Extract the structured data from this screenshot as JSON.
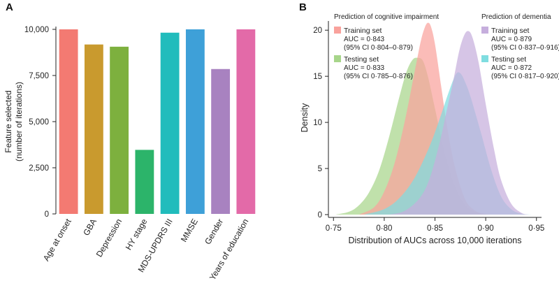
{
  "chart_data": [
    {
      "panel_label": "A",
      "type": "bar",
      "ylabel_line1": "Feature selected",
      "ylabel_line2": "(number of iterations)",
      "ylim": [
        0,
        10000
      ],
      "yticks": [
        0,
        2500,
        5000,
        7500,
        10000
      ],
      "ytick_labels": [
        "0",
        "2,500",
        "5,000",
        "7,500",
        "10,000"
      ],
      "categories": [
        "Age at onset",
        "GBA",
        "Depression",
        "HY stage",
        "MDS-UPDRS III",
        "MMSE",
        "Gender",
        "Years of education"
      ],
      "values": [
        10000,
        9180,
        9060,
        3470,
        9820,
        10000,
        7850,
        10000
      ],
      "colors": [
        "#f37a72",
        "#c99a2e",
        "#7db03e",
        "#2cb46a",
        "#21bcbc",
        "#3ea0d8",
        "#a882c0",
        "#e36aa8"
      ]
    },
    {
      "panel_label": "B",
      "type": "area",
      "xlabel": "Distribution of AUCs across 10,000 iterations",
      "ylabel": "Density",
      "xlim": [
        0.745,
        0.955
      ],
      "ylim": [
        0,
        21
      ],
      "xticks": [
        0.75,
        0.8,
        0.85,
        0.9,
        0.95
      ],
      "xtick_labels": [
        "0·75",
        "0·80",
        "0·85",
        "0·90",
        "0·95"
      ],
      "yticks": [
        0,
        5,
        10,
        15,
        20
      ],
      "ytick_labels": [
        "0",
        "5",
        "10",
        "15",
        "20"
      ],
      "groups": [
        {
          "heading": "Prediction of cognitive impairment",
          "entries": [
            {
              "name": "Training set",
              "line1": "AUC = 0·843",
              "line2": "(95% CI 0·804–0·879)",
              "color": "#f9a29c"
            },
            {
              "name": "Testing set",
              "line1": "AUC = 0·833",
              "line2": "(95% CI 0·785–0·876)",
              "color": "#a7d58a"
            }
          ]
        },
        {
          "heading": "Prediction of dementia",
          "entries": [
            {
              "name": "Training set",
              "line1": "AUC = 0·879",
              "line2": "(95% CI 0·837–0·916)",
              "color": "#c6aedd"
            },
            {
              "name": "Testing set",
              "line1": "AUC = 0·872",
              "line2": "(95% CI 0·817–0·920)",
              "color": "#7fdde0"
            }
          ]
        }
      ],
      "series": [
        {
          "name": "Testing set (cognitive impairment)",
          "color": "#a7d58a",
          "x": [
            0.752,
            0.765,
            0.775,
            0.785,
            0.795,
            0.805,
            0.815,
            0.822,
            0.828,
            0.833,
            0.838,
            0.843,
            0.85,
            0.86,
            0.87,
            0.88,
            0.89,
            0.9,
            0.91
          ],
          "y": [
            0,
            0.3,
            1,
            2.4,
            4.8,
            8.5,
            12.8,
            15.5,
            16.8,
            17.0,
            16.7,
            15,
            11.5,
            6.5,
            3,
            1,
            0.3,
            0.05,
            0
          ]
        },
        {
          "name": "Training set (cognitive impairment)",
          "color": "#f9a29c",
          "x": [
            0.775,
            0.79,
            0.8,
            0.81,
            0.82,
            0.83,
            0.836,
            0.84,
            0.843,
            0.846,
            0.85,
            0.856,
            0.862,
            0.87,
            0.88,
            0.89,
            0.9,
            0.905
          ],
          "y": [
            0,
            0.8,
            2.5,
            5.5,
            10,
            15.5,
            18.8,
            20.3,
            20.8,
            20.4,
            18.5,
            14,
            9.5,
            5,
            1.6,
            0.4,
            0.05,
            0
          ]
        },
        {
          "name": "Testing set (dementia)",
          "color": "#7fdde0",
          "x": [
            0.78,
            0.8,
            0.815,
            0.83,
            0.845,
            0.855,
            0.862,
            0.868,
            0.872,
            0.876,
            0.88,
            0.885,
            0.895,
            0.905,
            0.915,
            0.925,
            0.935,
            0.945
          ],
          "y": [
            0,
            0.6,
            1.8,
            4,
            7.5,
            10.5,
            12.8,
            14.6,
            15.4,
            15.2,
            14.3,
            12.8,
            9,
            5,
            2,
            0.6,
            0.1,
            0
          ]
        },
        {
          "name": "Training set (dementia)",
          "color": "#c6aedd",
          "x": [
            0.805,
            0.82,
            0.835,
            0.845,
            0.855,
            0.862,
            0.868,
            0.874,
            0.879,
            0.883,
            0.887,
            0.893,
            0.9,
            0.908,
            0.915,
            0.925,
            0.935,
            0.942
          ],
          "y": [
            0,
            0.4,
            1.8,
            4,
            8,
            11.5,
            14.5,
            17.8,
            19.5,
            19.9,
            19.2,
            16.5,
            12,
            7.2,
            3.8,
            1.2,
            0.2,
            0
          ]
        }
      ]
    }
  ]
}
